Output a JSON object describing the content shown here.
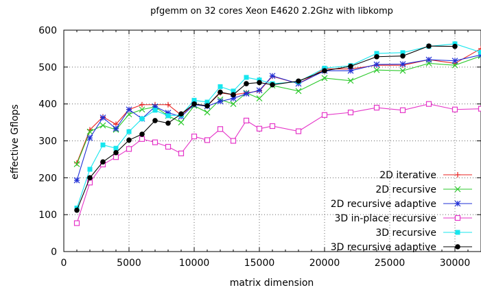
{
  "chart_data": {
    "type": "line",
    "title": "pfgemm on 32 cores Xeon E4620 2.2Ghz with libkomp",
    "xlabel": "matrix dimension",
    "ylabel": "effective Gflops",
    "xlim": [
      0,
      32000
    ],
    "ylim": [
      0,
      600
    ],
    "xticks": [
      "0",
      "5000",
      "10000",
      "15000",
      "20000",
      "25000",
      "30000"
    ],
    "yticks": [
      "0",
      "100",
      "200",
      "300",
      "400",
      "500",
      "600"
    ],
    "grid": true,
    "legend_position": "bottom-right",
    "series": [
      {
        "name": "2D iterative",
        "color": "#e8211f",
        "marker": "plus",
        "x": [
          1000,
          2000,
          3000,
          4000,
          5000,
          6000,
          7000,
          8000,
          9000,
          10000,
          11000,
          12000,
          13000,
          14000,
          15000,
          16000,
          18000,
          20000,
          22000,
          24000,
          26000,
          28000,
          30000,
          32000
        ],
        "y": [
          240,
          330,
          365,
          345,
          385,
          398,
          398,
          398,
          370,
          400,
          395,
          430,
          425,
          430,
          435,
          475,
          455,
          495,
          495,
          505,
          505,
          520,
          510,
          550
        ]
      },
      {
        "name": "2D recursive",
        "color": "#2bc92b",
        "marker": "x",
        "x": [
          1000,
          2000,
          3000,
          4000,
          5000,
          6000,
          7000,
          8000,
          9000,
          10000,
          11000,
          12000,
          13000,
          14000,
          15000,
          16000,
          18000,
          20000,
          22000,
          24000,
          26000,
          28000,
          30000,
          32000
        ],
        "y": [
          237,
          325,
          342,
          330,
          372,
          385,
          392,
          368,
          350,
          395,
          377,
          412,
          400,
          430,
          415,
          450,
          435,
          470,
          463,
          492,
          490,
          510,
          505,
          530
        ]
      },
      {
        "name": "2D recursive adaptive",
        "color": "#1f2fd6",
        "marker": "star",
        "x": [
          1000,
          2000,
          3000,
          4000,
          5000,
          6000,
          7000,
          8000,
          9000,
          10000,
          11000,
          12000,
          13000,
          14000,
          15000,
          16000,
          18000,
          20000,
          22000,
          24000,
          26000,
          28000,
          30000,
          32000
        ],
        "y": [
          193,
          308,
          363,
          333,
          385,
          360,
          393,
          376,
          366,
          398,
          394,
          407,
          415,
          428,
          437,
          476,
          455,
          490,
          490,
          507,
          508,
          520,
          517,
          533
        ]
      },
      {
        "name": "3D in-place recursive",
        "color": "#e535c8",
        "marker": "square-open",
        "x": [
          1000,
          2000,
          3000,
          4000,
          5000,
          6000,
          7000,
          8000,
          9000,
          10000,
          11000,
          12000,
          13000,
          14000,
          15000,
          16000,
          18000,
          20000,
          22000,
          24000,
          26000,
          28000,
          30000,
          32000
        ],
        "y": [
          77,
          187,
          236,
          256,
          278,
          305,
          296,
          284,
          266,
          312,
          302,
          332,
          300,
          355,
          333,
          340,
          326,
          370,
          377,
          390,
          383,
          400,
          385,
          387
        ]
      },
      {
        "name": "3D recursive",
        "color": "#17e6ee",
        "marker": "square-filled",
        "x": [
          1000,
          2000,
          3000,
          4000,
          5000,
          6000,
          7000,
          8000,
          9000,
          10000,
          11000,
          12000,
          13000,
          14000,
          15000,
          16000,
          18000,
          20000,
          22000,
          24000,
          26000,
          28000,
          30000,
          32000
        ],
        "y": [
          118,
          223,
          289,
          280,
          325,
          360,
          383,
          368,
          370,
          410,
          405,
          447,
          435,
          472,
          465,
          455,
          460,
          497,
          504,
          537,
          539,
          556,
          563,
          540
        ]
      },
      {
        "name": "3D recursive adaptive",
        "color": "#000000",
        "marker": "circle-filled",
        "x": [
          1000,
          2000,
          3000,
          4000,
          5000,
          6000,
          7000,
          8000,
          9000,
          10000,
          11000,
          12000,
          13000,
          14000,
          15000,
          16000,
          18000,
          20000,
          22000,
          24000,
          26000,
          28000,
          30000
        ],
        "y": [
          112,
          200,
          243,
          268,
          302,
          318,
          355,
          348,
          373,
          400,
          395,
          432,
          425,
          455,
          458,
          452,
          462,
          490,
          502,
          528,
          530,
          557,
          556
        ]
      }
    ]
  }
}
